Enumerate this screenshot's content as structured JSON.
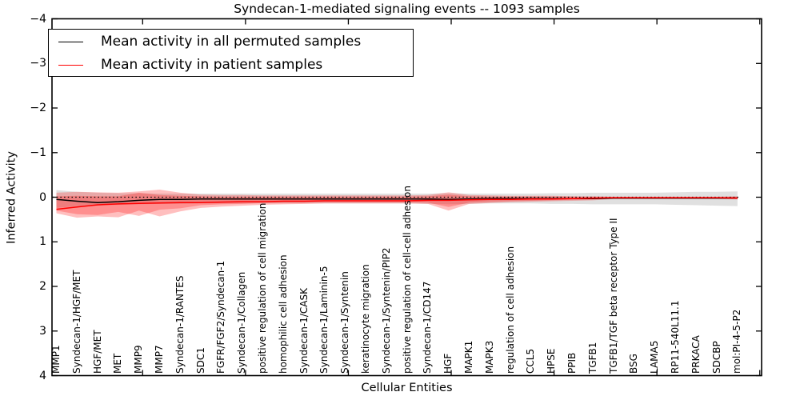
{
  "figure": {
    "title": "Syndecan-1-mediated signaling events -- 1093 samples",
    "background": "#ffffff"
  },
  "axes": {
    "xlabel": "Cellular Entities",
    "ylabel": "Inferred Activity",
    "ylim": [
      -4,
      4
    ],
    "ytick_labels": [
      "4",
      "3",
      "2",
      "1",
      "0",
      "−1",
      "−2",
      "−3",
      "−4"
    ]
  },
  "legend": {
    "items": [
      {
        "label": "Mean activity in all permuted samples",
        "color": "#000000"
      },
      {
        "label": "Mean activity in patient samples",
        "color": "#ff0000"
      }
    ]
  },
  "chart_data": {
    "type": "line",
    "title": "Syndecan-1-mediated signaling events -- 1093 samples",
    "xlabel": "Cellular Entities",
    "ylabel": "Inferred Activity",
    "ylim": [
      -4,
      4
    ],
    "yticks": [
      -4,
      -3,
      -2,
      -1,
      0,
      1,
      2,
      3,
      4
    ],
    "grid": false,
    "legend_position": "upper left",
    "zero_reference_line": true,
    "categories": [
      "MMP1",
      "Syndecan-1/HGF/MET",
      "HGF/MET",
      "MET",
      "MMP9",
      "MMP7",
      "Syndecan-1/RANTES",
      "SDC1",
      "FGFR/FGF2/Syndecan-1",
      "Syndecan-1/Collagen",
      "positive regulation of cell migration",
      "homophilic cell adhesion",
      "Syndecan-1/CASK",
      "Syndecan-1/Laminin-5",
      "Syndecan-1/Syntenin",
      "keratinocyte migration",
      "Syndecan-1/Syntenin/PIP2",
      "positive regulation of cell-cell adhesion",
      "Syndecan-1/CD147",
      "HGF",
      "MAPK1",
      "MAPK3",
      "regulation of cell adhesion",
      "CCL5",
      "HPSE",
      "PPIB",
      "TGFB1",
      "TGFB1/TGF beta receptor Type II",
      "BSG",
      "LAMA5",
      "RP11-540L11.1",
      "PRKACA",
      "SDCBP",
      "mol:PI-4-5-P2"
    ],
    "series": [
      {
        "name": "Mean activity in all permuted samples",
        "color": "#000000",
        "values": [
          -0.05,
          -0.09,
          -0.12,
          -0.1,
          -0.07,
          -0.05,
          -0.05,
          -0.04,
          -0.04,
          -0.04,
          -0.04,
          -0.04,
          -0.04,
          -0.04,
          -0.04,
          -0.04,
          -0.04,
          -0.04,
          -0.04,
          -0.05,
          -0.04,
          -0.03,
          -0.03,
          -0.03,
          -0.03,
          -0.03,
          -0.03,
          -0.02,
          -0.02,
          -0.02,
          -0.02,
          -0.02,
          -0.02,
          -0.02
        ]
      },
      {
        "name": "Mean activity in patient samples",
        "color": "#ff0000",
        "values": [
          -0.27,
          -0.22,
          -0.17,
          -0.15,
          -0.14,
          -0.13,
          -0.12,
          -0.12,
          -0.11,
          -0.1,
          -0.1,
          -0.09,
          -0.09,
          -0.08,
          -0.08,
          -0.08,
          -0.08,
          -0.08,
          -0.07,
          -0.07,
          -0.06,
          -0.05,
          -0.05,
          -0.04,
          -0.04,
          -0.03,
          -0.02,
          -0.01,
          -0.01,
          -0.01,
          -0.01,
          -0.01,
          -0.01,
          -0.02
        ]
      }
    ],
    "bands": [
      {
        "name": "permuted-samples-spread",
        "color": "#000000",
        "opacity": 0.12,
        "top": [
          0.16,
          0.12,
          0.1,
          0.09,
          0.09,
          0.08,
          0.08,
          0.08,
          0.08,
          0.08,
          0.08,
          0.08,
          0.08,
          0.08,
          0.08,
          0.08,
          0.08,
          0.08,
          0.08,
          0.09,
          0.08,
          0.08,
          0.08,
          0.08,
          0.09,
          0.09,
          0.1,
          0.1,
          0.1,
          0.1,
          0.11,
          0.12,
          0.12,
          0.13
        ],
        "bottom": [
          -0.24,
          -0.2,
          -0.19,
          -0.17,
          -0.16,
          -0.15,
          -0.15,
          -0.14,
          -0.14,
          -0.14,
          -0.14,
          -0.14,
          -0.14,
          -0.14,
          -0.14,
          -0.14,
          -0.14,
          -0.14,
          -0.15,
          -0.16,
          -0.15,
          -0.14,
          -0.14,
          -0.14,
          -0.15,
          -0.15,
          -0.16,
          -0.16,
          -0.16,
          -0.16,
          -0.17,
          -0.18,
          -0.19,
          -0.2
        ]
      },
      {
        "name": "patient-samples-spread-outer",
        "color": "#ff0000",
        "opacity": 0.25,
        "top": [
          0.1,
          0.12,
          0.11,
          0.1,
          0.13,
          0.17,
          0.1,
          0.06,
          0.05,
          0.05,
          0.04,
          0.04,
          0.04,
          0.04,
          0.04,
          0.04,
          0.04,
          0.04,
          0.05,
          0.11,
          0.05,
          0.04,
          0.03,
          0.03,
          0.03,
          0.02,
          0.02,
          0.01,
          0.01,
          0.01,
          0.01,
          0.01,
          0.01,
          0.02
        ],
        "bottom": [
          -0.36,
          -0.46,
          -0.43,
          -0.45,
          -0.3,
          -0.43,
          -0.32,
          -0.24,
          -0.21,
          -0.19,
          -0.17,
          -0.16,
          -0.15,
          -0.14,
          -0.14,
          -0.14,
          -0.14,
          -0.14,
          -0.15,
          -0.3,
          -0.15,
          -0.13,
          -0.11,
          -0.1,
          -0.09,
          -0.08,
          -0.07,
          -0.04,
          -0.04,
          -0.04,
          -0.04,
          -0.04,
          -0.04,
          -0.05
        ]
      },
      {
        "name": "patient-samples-spread-inner",
        "color": "#ff0000",
        "opacity": 0.25,
        "top": [
          0.02,
          0.03,
          0.02,
          0.02,
          0.1,
          0.05,
          0.03,
          0.02,
          0.01,
          0.01,
          0.01,
          0.01,
          0.01,
          0.01,
          0.01,
          0.01,
          0.01,
          0.01,
          0.02,
          0.06,
          0.02,
          0.01,
          0.01,
          0.01,
          0.01,
          0.01,
          0.0,
          0.0,
          0.0,
          0.0,
          0.0,
          0.0,
          0.0,
          0.01
        ],
        "bottom": [
          -0.3,
          -0.38,
          -0.4,
          -0.33,
          -0.42,
          -0.28,
          -0.25,
          -0.18,
          -0.16,
          -0.15,
          -0.13,
          -0.12,
          -0.12,
          -0.11,
          -0.11,
          -0.11,
          -0.11,
          -0.11,
          -0.12,
          -0.22,
          -0.12,
          -0.1,
          -0.09,
          -0.08,
          -0.07,
          -0.06,
          -0.05,
          -0.03,
          -0.03,
          -0.03,
          -0.03,
          -0.03,
          -0.03,
          -0.04
        ]
      }
    ]
  }
}
